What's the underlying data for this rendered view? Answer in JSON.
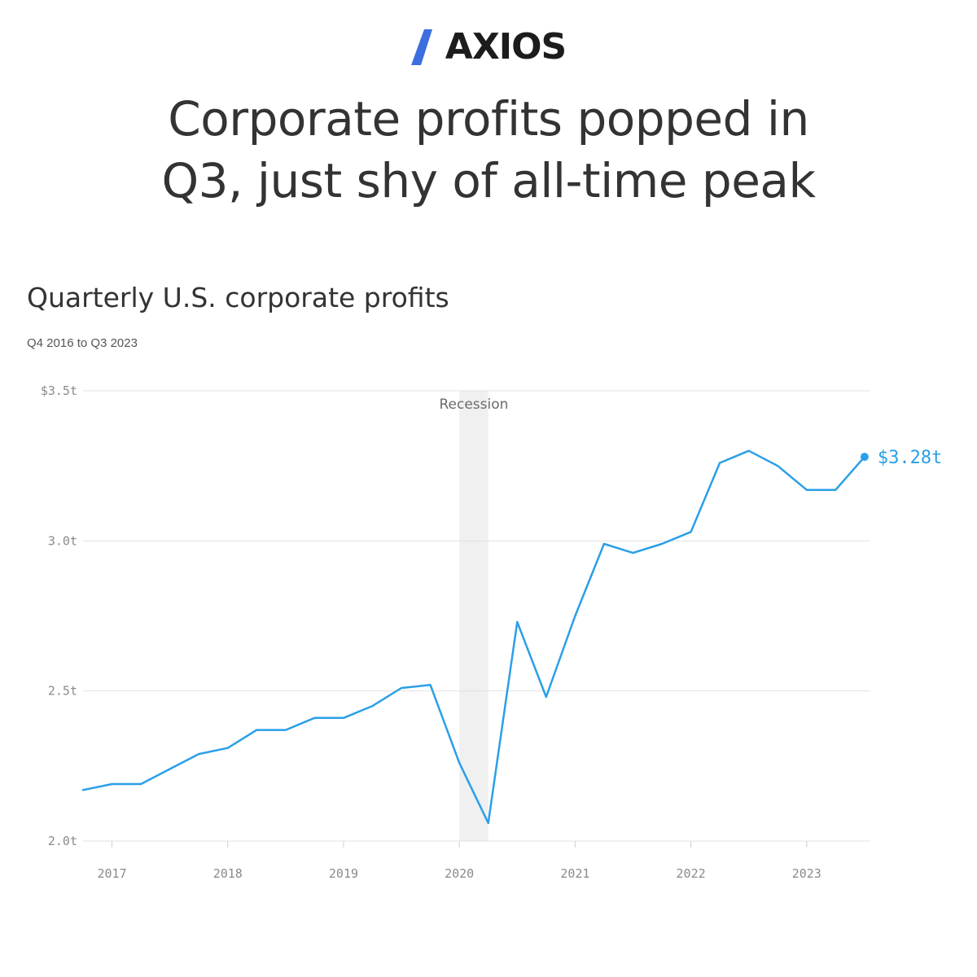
{
  "brand": {
    "name": "AXIOS"
  },
  "headline": {
    "line1": "Corporate profits popped in",
    "line2": "Q3, just shy of all-time peak"
  },
  "colors": {
    "line": "#2a9fe8",
    "recession": "#f0f0f0",
    "grid": "#e2e2e2",
    "logo_mark": "#3b6fe0"
  },
  "chart_data": {
    "type": "line",
    "title": "Quarterly U.S. corporate profits",
    "subtitle": "Q4 2016 to Q3 2023",
    "xlabel": "",
    "ylabel": "",
    "ylim": [
      2.0,
      3.5
    ],
    "xlim": [
      2016.75,
      2023.55
    ],
    "yticks": [
      {
        "value": 3.5,
        "label": "$3.5t"
      },
      {
        "value": 3.0,
        "label": "3.0t"
      },
      {
        "value": 2.5,
        "label": "2.5t"
      },
      {
        "value": 2.0,
        "label": "2.0t"
      }
    ],
    "xticks": [
      {
        "value": 2017,
        "label": "2017"
      },
      {
        "value": 2018,
        "label": "2018"
      },
      {
        "value": 2019,
        "label": "2019"
      },
      {
        "value": 2020,
        "label": "2020"
      },
      {
        "value": 2021,
        "label": "2021"
      },
      {
        "value": 2022,
        "label": "2022"
      },
      {
        "value": 2023,
        "label": "2023"
      }
    ],
    "grid": true,
    "annotations": [
      {
        "type": "band",
        "x0": 2020.0,
        "x1": 2020.25,
        "label": "Recession"
      }
    ],
    "end_label": "$3.28t",
    "series": [
      {
        "x": [
          "Q4 2016",
          "Q1 2017",
          "Q2 2017",
          "Q3 2017",
          "Q4 2017",
          "Q1 2018",
          "Q2 2018",
          "Q3 2018",
          "Q4 2018",
          "Q1 2019",
          "Q2 2019",
          "Q3 2019",
          "Q4 2019",
          "Q1 2020",
          "Q2 2020",
          "Q3 2020",
          "Q4 2020",
          "Q1 2021",
          "Q2 2021",
          "Q3 2021",
          "Q4 2021",
          "Q1 2022",
          "Q2 2022",
          "Q3 2022",
          "Q4 2022",
          "Q1 2023",
          "Q2 2023",
          "Q3 2023"
        ],
        "values": [
          2.17,
          2.19,
          2.19,
          2.24,
          2.29,
          2.31,
          2.37,
          2.37,
          2.41,
          2.41,
          2.45,
          2.51,
          2.52,
          2.26,
          2.06,
          2.73,
          2.48,
          2.75,
          2.99,
          2.96,
          2.99,
          3.03,
          3.26,
          3.3,
          3.25,
          3.17,
          3.17,
          3.28
        ]
      }
    ]
  }
}
